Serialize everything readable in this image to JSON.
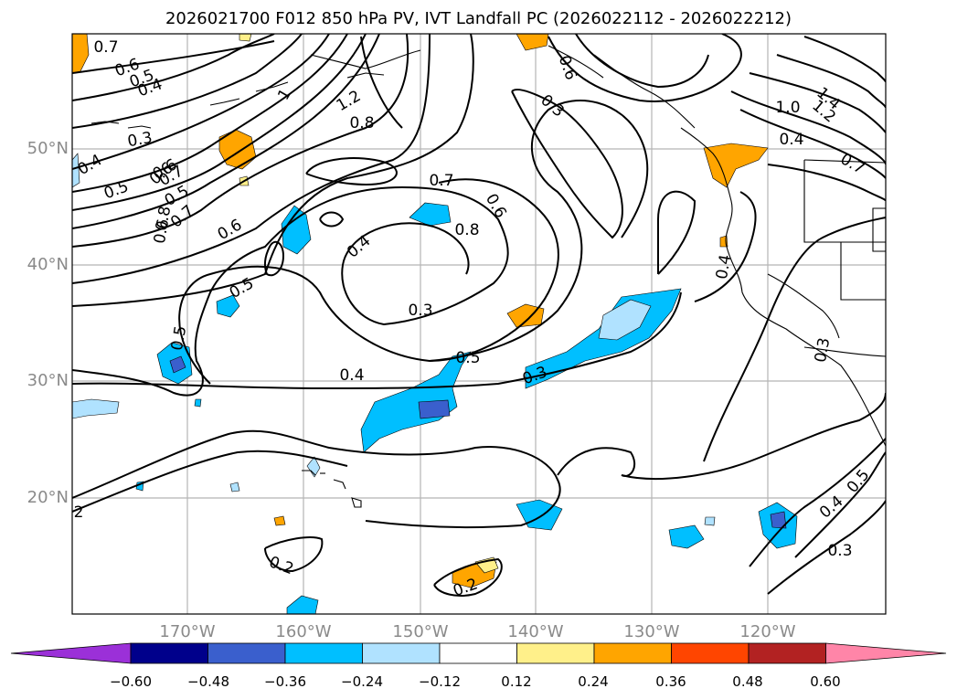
{
  "title": "2026021700 F012 850 hPa PV, IVT Landfall PC (2026022112 - 2026022212)",
  "latitude_labels": [
    "50°N",
    "40°N",
    "30°N",
    "20°N"
  ],
  "longitude_labels": [
    "170°W",
    "160°W",
    "150°W",
    "140°W",
    "130°W",
    "120°W"
  ],
  "colorbar": {
    "ticks": [
      "−0.60",
      "−0.48",
      "−0.36",
      "−0.24",
      "−0.12",
      "0.12",
      "0.24",
      "0.36",
      "0.48",
      "0.60"
    ],
    "colors": [
      "#9b30d8",
      "#00008b",
      "#3a5fcd",
      "#00bfff",
      "#b0e2ff",
      "#ffffff",
      "#fff08a",
      "#ffa500",
      "#ff4500",
      "#b22222",
      "#ff85a8"
    ]
  },
  "contour_labels": [
    "0.7",
    "0.6",
    "0.5",
    "0.4",
    "0.3",
    "1",
    "1.2",
    "0.8",
    "0.5",
    "0.6",
    "0.3",
    "0.6",
    "1.4",
    "1.2",
    "1.0",
    "0.4",
    "0.7",
    "0.4",
    "0.6",
    "0.5",
    "0.7",
    "0.6",
    "0.8",
    "0.7",
    "0.7",
    "0.6",
    "0.6",
    "0.8",
    "0.4",
    "0.5",
    "0.3",
    "0.5",
    "0.4",
    "0.5",
    "0.3",
    "0.4",
    "0.3",
    "2",
    "0.2",
    "0.2",
    "0.4",
    "0.5",
    "0.3"
  ]
}
